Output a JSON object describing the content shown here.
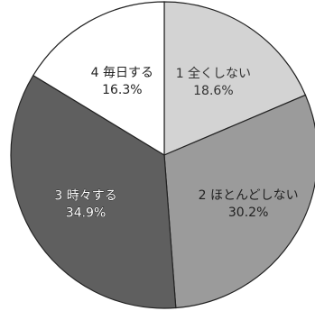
{
  "chart_data": {
    "type": "pie",
    "start_angle_deg": 0,
    "direction": "clockwise",
    "slices": [
      {
        "category": "1 全くしない",
        "value": 18.6,
        "value_label": "18.6%",
        "color": "#d3d3d3",
        "text_color": "#333333",
        "text_outline": false
      },
      {
        "category": "2 ほとんどしない",
        "value": 30.2,
        "value_label": "30.2%",
        "color": "#9b9b9b",
        "text_color": "#222222",
        "text_outline": false
      },
      {
        "category": "3 時々する",
        "value": 34.9,
        "value_label": "34.9%",
        "color": "#5f5f5f",
        "text_color": "#ffffff",
        "text_outline": true
      },
      {
        "category": "4 毎日する",
        "value": 16.3,
        "value_label": "16.3%",
        "color": "#ffffff",
        "text_color": "#222222",
        "text_outline": false
      }
    ]
  }
}
